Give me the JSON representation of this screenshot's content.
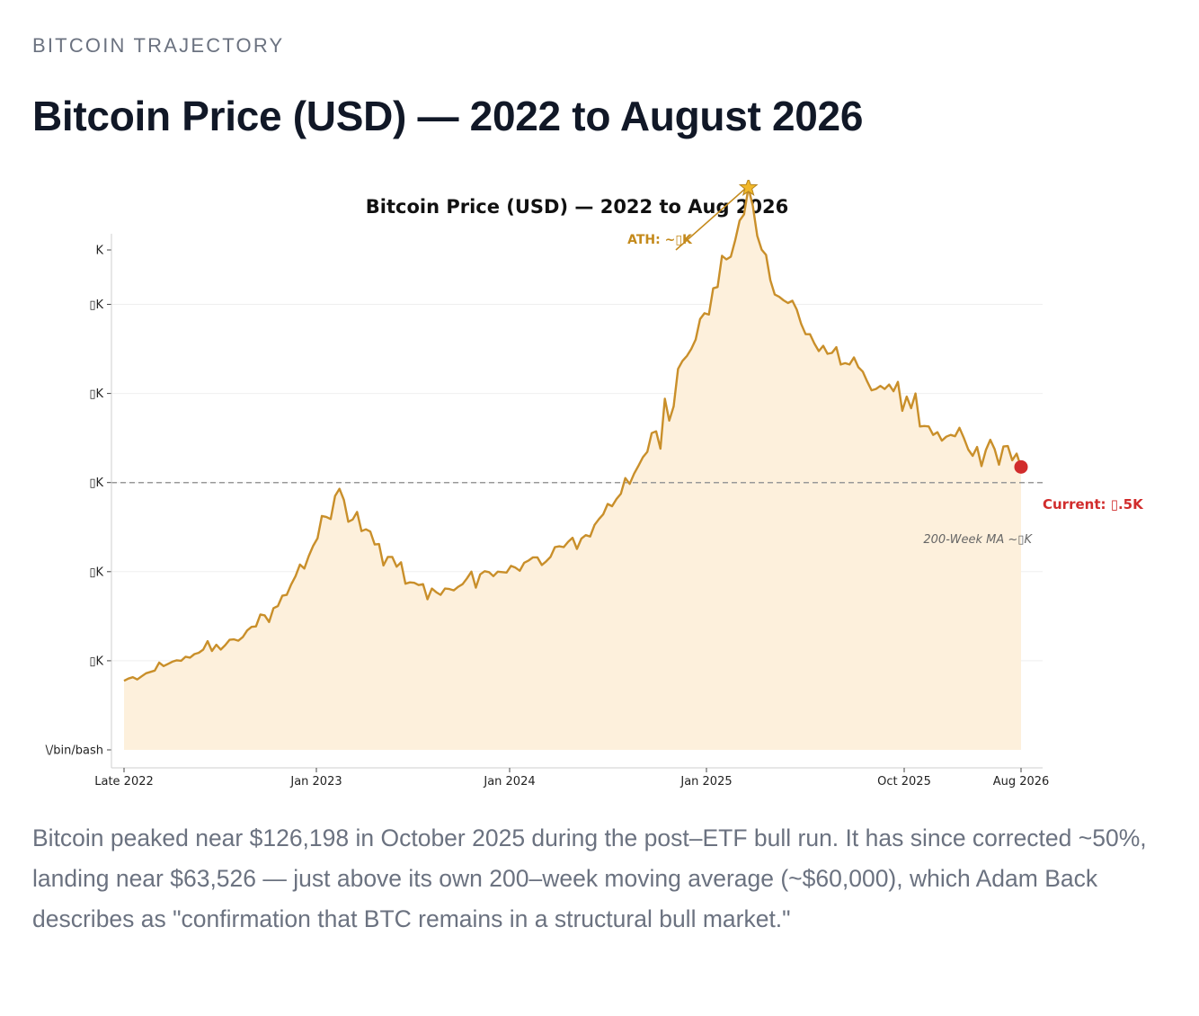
{
  "kicker": "BITCOIN TRAJECTORY",
  "headline": "Bitcoin Price (USD) — 2022 to August 2026",
  "caption": "Bitcoin peaked near $126,198 in October 2025 during the post–ETF bull run. It has since corrected ~50%, landing near $63,526 — just above its own 200–week moving average (~$60,000), which Adam Back describes as \"confirmation that BTC remains in a structural bull market.\"",
  "colors": {
    "line": "#c98f2a",
    "fill": "#fdf0dc",
    "current": "#d12c2c",
    "ma": "#999999"
  },
  "chart_data": {
    "type": "area",
    "title": "Bitcoin Price (USD) — 2022 to Aug 2026",
    "x_tick_labels": [
      "Late 2022",
      "Jan 2023",
      "Jan 2024",
      "Jan 2025",
      "Oct 2025",
      "Aug 2026"
    ],
    "y_tick_labels": [
      "\\/bin/bash",
      "▯K",
      "▯K",
      "▯K",
      "▯K",
      "▯K",
      "K"
    ],
    "grid": "horizontal",
    "annotations": {
      "ath": "ATH: ~▯K",
      "current": "Current: ▯.5K",
      "ma": "200-Week MA ~▯K"
    },
    "ylim": [
      0,
      140000
    ],
    "ma_value": 60000,
    "series": [
      {
        "values": [
          15500,
          16000,
          16300,
          15800,
          16500,
          17200,
          17500,
          17800,
          19600,
          18800,
          19300,
          19800,
          20100,
          20000,
          20900,
          20700,
          21500,
          21800,
          22500,
          24400,
          22200,
          23600,
          22500,
          23500,
          24700,
          24800,
          24500,
          25300,
          26800,
          27600,
          27700,
          30400,
          30200,
          28700,
          31800,
          32300,
          34600,
          34800,
          37100,
          39000,
          41600,
          40700,
          43500,
          45800,
          47500,
          52500,
          52300,
          51800,
          57000,
          58600,
          56100,
          51200,
          51700,
          53400,
          49100,
          49500,
          49000,
          46100,
          46200,
          41400,
          43300,
          43300,
          41100,
          42100,
          37300,
          37600,
          37500,
          37000,
          37200,
          33800,
          36200,
          35400,
          34800,
          36200,
          36100,
          35800,
          36600,
          37200,
          38500,
          40000,
          36400,
          39400,
          40100,
          39900,
          39000,
          40000,
          39900,
          39800,
          41300,
          40900,
          40200,
          42000,
          42500,
          43200,
          43200,
          41500,
          42300,
          43300,
          45500,
          45700,
          45500,
          46700,
          47600,
          45100,
          47400,
          48200,
          47900,
          50500,
          51800,
          52900,
          55200,
          54700,
          56300,
          57500,
          61000,
          59700,
          62000,
          63800,
          65700,
          66900,
          71100,
          71500,
          67600,
          78800,
          73900,
          77100,
          85500,
          87300,
          88400,
          90000,
          92100,
          96700,
          98000,
          97700,
          103600,
          103900,
          110900,
          110100,
          110700,
          114400,
          118800,
          120200,
          126200,
          122100,
          115400,
          112300,
          111100,
          105400,
          102200,
          101700,
          100900,
          100300,
          100800,
          98800,
          95600,
          93300,
          93300,
          91200,
          89500,
          90700,
          88900,
          89100,
          90400,
          86500,
          86800,
          86500,
          88100,
          85900,
          84900,
          82700,
          80700,
          81000,
          81700,
          81000,
          82000,
          80500,
          82600,
          76100,
          79300,
          76700,
          80000,
          72600,
          72700,
          72600,
          70700,
          71300,
          69400,
          70300,
          70700,
          70400,
          72300,
          70000,
          67400,
          66000,
          68000,
          63700,
          67300,
          69600,
          67500,
          64000,
          68100,
          68200,
          65000,
          66500,
          63500
        ]
      }
    ]
  }
}
